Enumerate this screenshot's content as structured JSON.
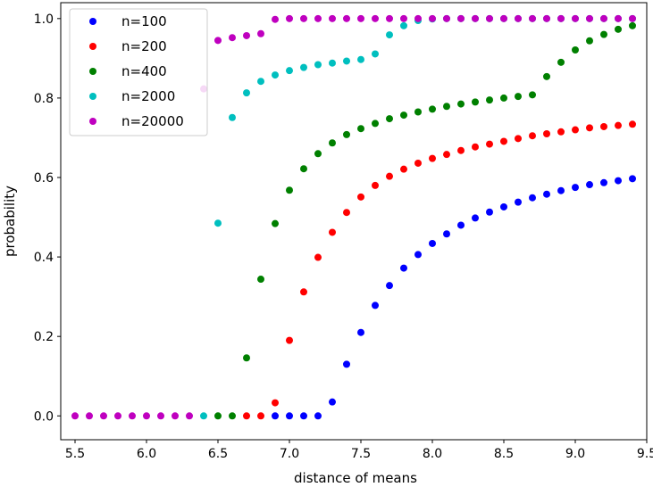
{
  "chart_data": {
    "type": "scatter",
    "title": "",
    "xlabel": "distance of means",
    "ylabel": "probability",
    "xlim": [
      5.4,
      9.5
    ],
    "ylim": [
      -0.06,
      1.04
    ],
    "xticks": [
      "5.5",
      "6.0",
      "6.5",
      "7.0",
      "7.5",
      "8.0",
      "8.5",
      "9.0",
      "9.5"
    ],
    "yticks": [
      "0.0",
      "0.2",
      "0.4",
      "0.6",
      "0.8",
      "1.0"
    ],
    "legend_position": "upper-left",
    "x": [
      5.5,
      5.6,
      5.7,
      5.8,
      5.9,
      6.0,
      6.1,
      6.2,
      6.3,
      6.4,
      6.5,
      6.6,
      6.7,
      6.8,
      6.9,
      7.0,
      7.1,
      7.2,
      7.3,
      7.4,
      7.5,
      7.6,
      7.7,
      7.8,
      7.9,
      8.0,
      8.1,
      8.2,
      8.3,
      8.4,
      8.5,
      8.6,
      8.7,
      8.8,
      8.9,
      9.0,
      9.1,
      9.2,
      9.3,
      9.4
    ],
    "series": [
      {
        "name": "n=100",
        "color": "#0000ff",
        "values": [
          null,
          null,
          null,
          null,
          null,
          null,
          null,
          null,
          null,
          null,
          null,
          null,
          null,
          null,
          0.0,
          0.0,
          0.0,
          0.0,
          0.035,
          0.13,
          0.21,
          0.278,
          0.328,
          0.372,
          0.406,
          0.434,
          0.458,
          0.48,
          0.498,
          0.513,
          0.526,
          0.538,
          0.549,
          0.558,
          0.567,
          0.575,
          0.582,
          0.587,
          0.592,
          0.597
        ]
      },
      {
        "name": "n=200",
        "color": "#ff0000",
        "values": [
          null,
          null,
          null,
          null,
          null,
          null,
          null,
          null,
          null,
          null,
          null,
          null,
          0.0,
          0.0,
          0.033,
          0.19,
          0.312,
          0.399,
          0.462,
          0.512,
          0.551,
          0.58,
          0.603,
          0.621,
          0.636,
          0.648,
          0.658,
          0.668,
          0.677,
          0.684,
          0.691,
          0.698,
          0.705,
          0.71,
          0.715,
          0.72,
          0.725,
          0.728,
          0.731,
          0.734
        ]
      },
      {
        "name": "n=400",
        "color": "#008000",
        "values": [
          null,
          null,
          null,
          null,
          null,
          null,
          null,
          null,
          null,
          null,
          0.0,
          0.0,
          0.146,
          0.344,
          0.484,
          0.568,
          0.622,
          0.66,
          0.687,
          0.708,
          0.723,
          0.736,
          0.748,
          0.757,
          0.765,
          0.772,
          0.779,
          0.785,
          0.79,
          0.795,
          0.8,
          0.804,
          0.808,
          0.854,
          0.89,
          0.921,
          0.944,
          0.96,
          0.973,
          0.982
        ]
      },
      {
        "name": "n=2000",
        "color": "#00bfbf",
        "values": [
          null,
          null,
          null,
          null,
          null,
          null,
          null,
          null,
          null,
          0.0,
          0.485,
          0.751,
          0.813,
          0.842,
          0.858,
          0.869,
          0.877,
          0.884,
          0.888,
          0.893,
          0.897,
          0.911,
          0.959,
          0.982,
          0.995,
          0.999,
          1.0,
          1.0,
          1.0,
          1.0,
          1.0,
          1.0,
          1.0,
          1.0,
          1.0,
          1.0,
          1.0,
          1.0,
          1.0,
          1.0
        ]
      },
      {
        "name": "n=20000",
        "color": "#bf00bf",
        "values": [
          0.0,
          0.0,
          0.0,
          0.0,
          0.0,
          0.0,
          0.0,
          0.0,
          0.0,
          0.823,
          0.945,
          0.952,
          0.957,
          0.962,
          0.998,
          1.0,
          1.0,
          1.0,
          1.0,
          1.0,
          1.0,
          1.0,
          1.0,
          1.0,
          1.0,
          1.0,
          1.0,
          1.0,
          1.0,
          1.0,
          1.0,
          1.0,
          1.0,
          1.0,
          1.0,
          1.0,
          1.0,
          1.0,
          1.0,
          1.0
        ]
      }
    ]
  }
}
